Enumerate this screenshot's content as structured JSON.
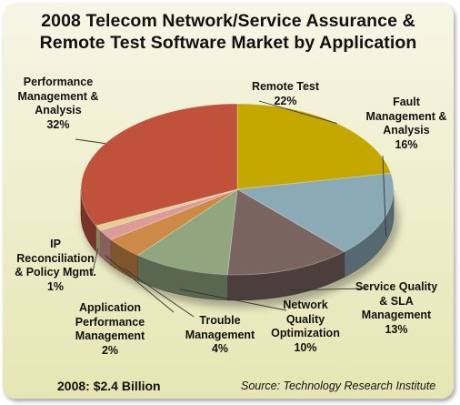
{
  "chart_data": {
    "type": "pie",
    "title_line1": "2008 Telecom Network/Service Assurance &",
    "title_line2": "Remote Test Software Market by Application",
    "slices": [
      {
        "label_lines": [
          "Remote Test"
        ],
        "value": 22,
        "pct_text": "22%",
        "color": "#c4a800"
      },
      {
        "label_lines": [
          "Fault",
          "Management &",
          "Analysis"
        ],
        "value": 16,
        "pct_text": "16%",
        "color": "#8aaab6"
      },
      {
        "label_lines": [
          "Service Quality",
          "& SLA",
          "Management"
        ],
        "value": 13,
        "pct_text": "13%",
        "color": "#7a6460"
      },
      {
        "label_lines": [
          "Network",
          "Quality",
          "Optimization"
        ],
        "value": 10,
        "pct_text": "10%",
        "color": "#8fa67e"
      },
      {
        "label_lines": [
          "Trouble",
          "Management"
        ],
        "value": 4,
        "pct_text": "4%",
        "color": "#cd8a46"
      },
      {
        "label_lines": [
          "Application",
          "Performance",
          "Management"
        ],
        "value": 2,
        "pct_text": "2%",
        "color": "#dc9a9a"
      },
      {
        "label_lines": [
          "IP",
          "Reconciliation",
          "& Policy Mgmt."
        ],
        "value": 1,
        "pct_text": "1%",
        "color": "#e3d090"
      },
      {
        "label_lines": [
          "Performance",
          "Management &",
          "Analysis"
        ],
        "value": 32,
        "pct_text": "32%",
        "color": "#c0523c"
      }
    ],
    "footer_left": "2008: $2.4 Billion",
    "footer_right": "Source: Technology Research Institute"
  }
}
